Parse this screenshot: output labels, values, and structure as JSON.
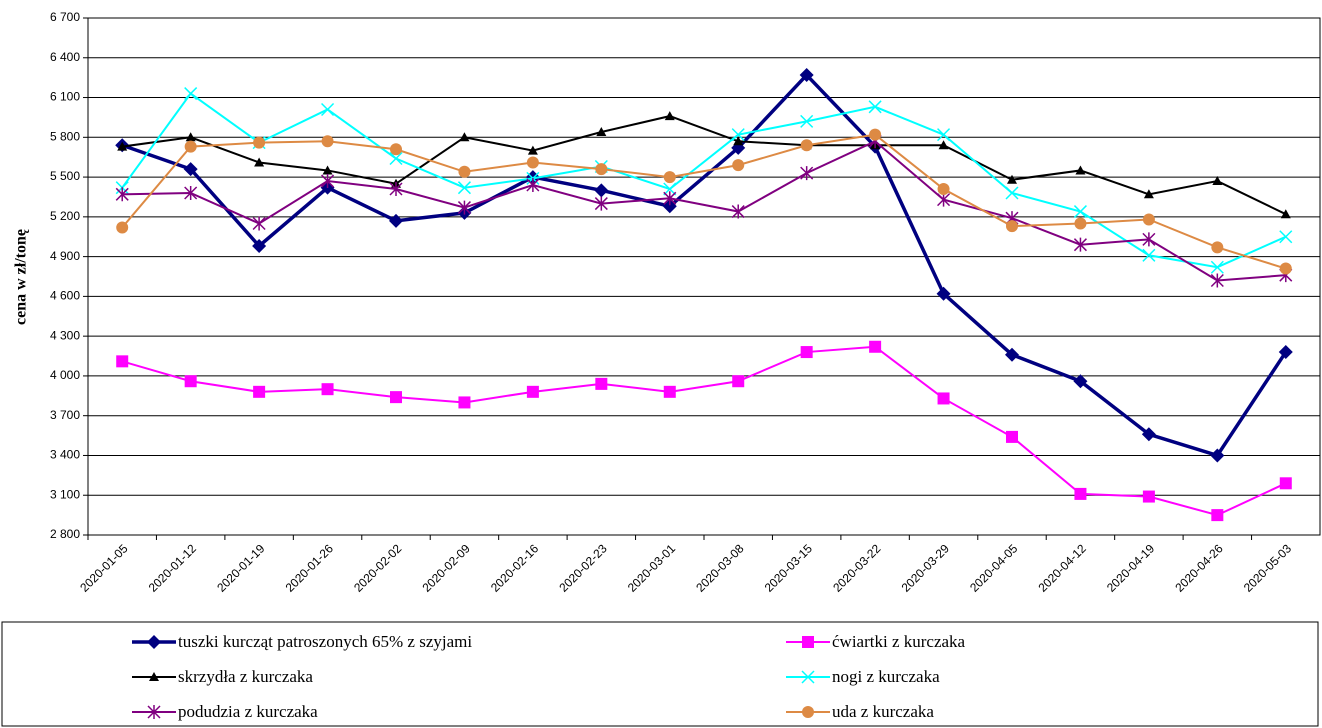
{
  "chart_data": {
    "type": "line",
    "y_label": "cena w zł/tonę",
    "categories": [
      "2020-01-05",
      "2020-01-12",
      "2020-01-19",
      "2020-01-26",
      "2020-02-02",
      "2020-02-09",
      "2020-02-16",
      "2020-02-23",
      "2020-03-01",
      "2020-03-08",
      "2020-03-15",
      "2020-03-22",
      "2020-03-29",
      "2020-04-05",
      "2020-04-12",
      "2020-04-19",
      "2020-04-26",
      "2020-05-03"
    ],
    "ylim": [
      2800,
      6700
    ],
    "yticks": [
      {
        "value": 2800,
        "label": "2 800"
      },
      {
        "value": 3100,
        "label": "3 100"
      },
      {
        "value": 3400,
        "label": "3 400"
      },
      {
        "value": 3700,
        "label": "3 700"
      },
      {
        "value": 4000,
        "label": "4 000"
      },
      {
        "value": 4300,
        "label": "4 300"
      },
      {
        "value": 4600,
        "label": "4 600"
      },
      {
        "value": 4900,
        "label": "4 900"
      },
      {
        "value": 5200,
        "label": "5 200"
      },
      {
        "value": 5500,
        "label": "5 500"
      },
      {
        "value": 5800,
        "label": "5 800"
      },
      {
        "value": 6100,
        "label": "6 100"
      },
      {
        "value": 6400,
        "label": "6 400"
      },
      {
        "value": 6700,
        "label": "6 700"
      }
    ],
    "grid": true,
    "legend": "bottom",
    "series": [
      {
        "name": "tuszki kurcząt patroszonych 65% z szyjami",
        "color": "#000080",
        "marker": "diamond",
        "values": [
          5740,
          5560,
          4980,
          5420,
          5170,
          5230,
          5500,
          5400,
          5280,
          5720,
          6270,
          5730,
          4620,
          4160,
          3960,
          3560,
          3400,
          4180
        ]
      },
      {
        "name": "ćwiartki z kurczaka",
        "color": "#ff00ff",
        "marker": "square",
        "values": [
          4110,
          3960,
          3880,
          3900,
          3840,
          3800,
          3880,
          3940,
          3880,
          3960,
          4180,
          4220,
          3830,
          3540,
          3110,
          3090,
          2950,
          3190
        ]
      },
      {
        "name": "skrzydła z kurczaka",
        "color": "#000000",
        "marker": "triangle",
        "values": [
          5730,
          5800,
          5610,
          5550,
          5450,
          5800,
          5700,
          5840,
          5960,
          5770,
          5740,
          5740,
          5740,
          5480,
          5550,
          5370,
          5470,
          5220
        ]
      },
      {
        "name": "nogi z kurczaka",
        "color": "#00ffff",
        "marker": "x",
        "values": [
          5420,
          6130,
          5760,
          6010,
          5640,
          5420,
          5490,
          5580,
          5410,
          5820,
          5920,
          6030,
          5820,
          5380,
          5240,
          4910,
          4820,
          5050
        ]
      },
      {
        "name": "podudzia z kurczaka",
        "color": "#800080",
        "marker": "asterisk",
        "values": [
          5370,
          5380,
          5150,
          5470,
          5410,
          5270,
          5440,
          5300,
          5340,
          5240,
          5530,
          5770,
          5330,
          5190,
          4990,
          5030,
          4720,
          4760
        ]
      },
      {
        "name": "uda z kurczaka",
        "color": "#dd8a44",
        "marker": "circle",
        "values": [
          5120,
          5730,
          5760,
          5770,
          5710,
          5540,
          5610,
          5560,
          5500,
          5590,
          5740,
          5820,
          5410,
          5130,
          5150,
          5180,
          4970,
          4810
        ]
      }
    ]
  }
}
